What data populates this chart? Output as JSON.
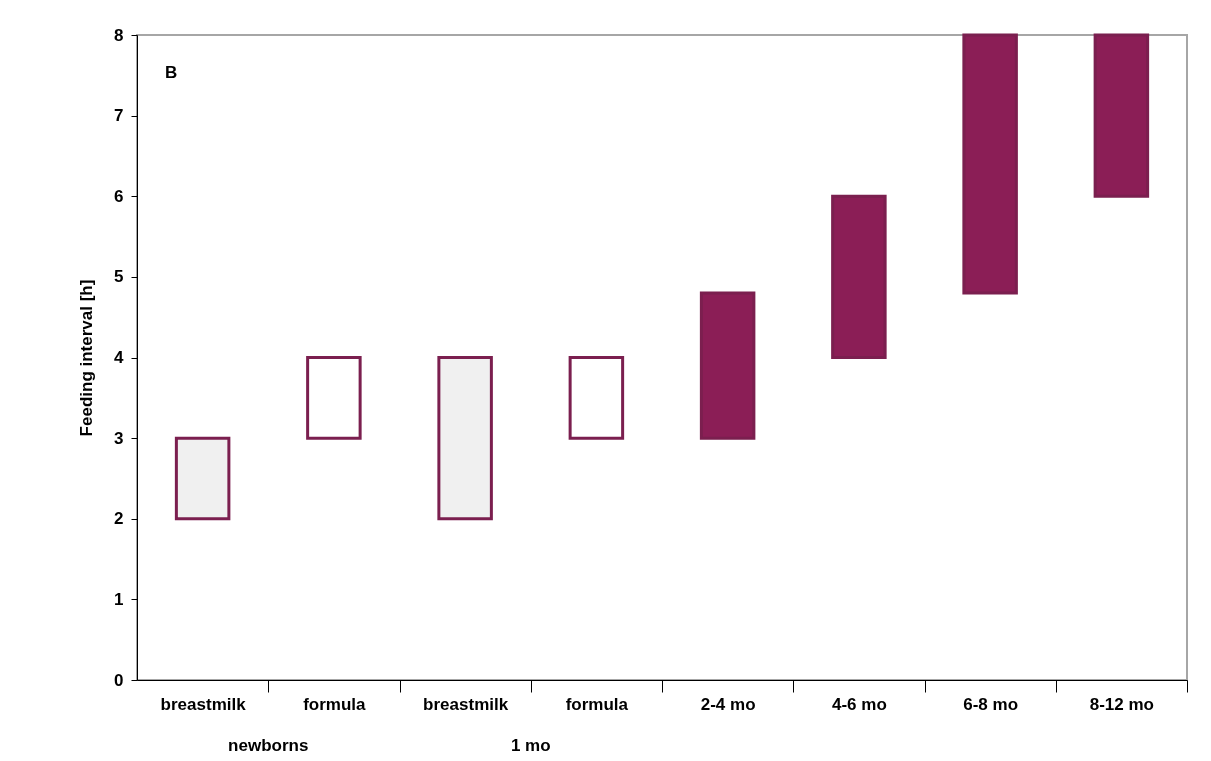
{
  "chart_data": {
    "type": "bar",
    "ylabel": "Feeding interval [h]",
    "categories": [
      "breastmilk",
      "formula",
      "breastmilk",
      "formula",
      "2-4 mo",
      "4-6 mo",
      "6-8 mo",
      "8-12 mo"
    ],
    "base": [
      2,
      3,
      2,
      3,
      3,
      4,
      4.8,
      6
    ],
    "values": [
      1,
      1,
      2,
      1,
      1.8,
      2,
      3.2,
      2
    ],
    "colors": [
      "#f0f0f0",
      "#ffffff",
      "#f0f0f0",
      "#ffffff",
      "#8b1e56",
      "#8b1e56",
      "#8b1e56",
      "#8b1e56"
    ],
    "ylim": [
      0,
      8
    ],
    "yticks": [
      0,
      1,
      2,
      3,
      4,
      5,
      6,
      7,
      8
    ],
    "grid": false,
    "annotations": [
      "B",
      "newborns",
      "1 mo"
    ]
  }
}
